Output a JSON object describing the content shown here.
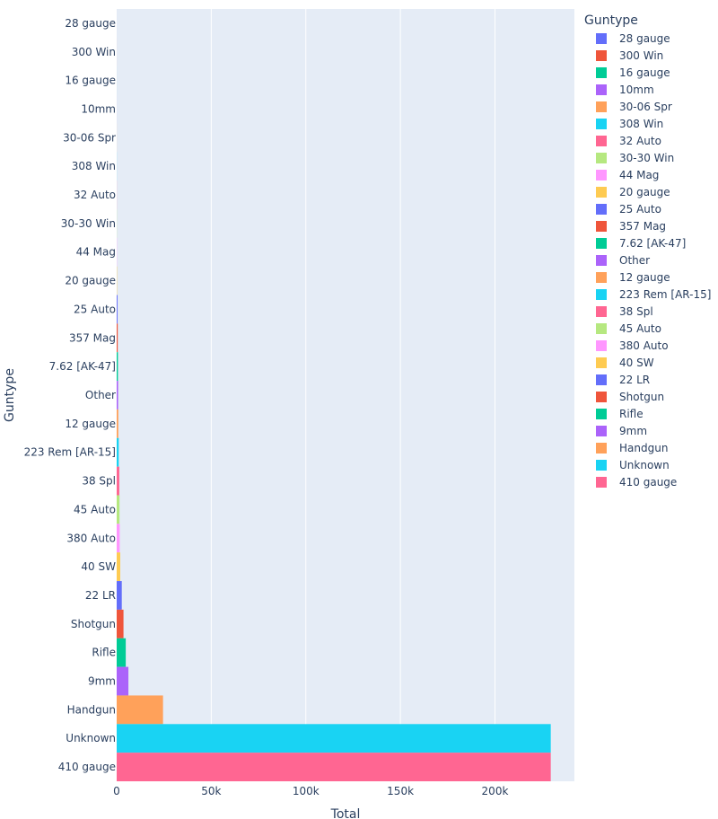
{
  "chart_data": {
    "type": "bar",
    "orientation": "horizontal",
    "xlabel": "Total",
    "ylabel": "Guntype",
    "xlim": [
      0,
      242000
    ],
    "x_ticks": [
      0,
      50000,
      100000,
      150000,
      200000
    ],
    "x_tick_labels": [
      "0",
      "50k",
      "100k",
      "150k",
      "200k"
    ],
    "grid": true,
    "legend_title": "Guntype",
    "legend_position": "right",
    "categories": [
      "28 gauge",
      "300 Win",
      "16 gauge",
      "10mm",
      "30-06 Spr",
      "308 Win",
      "32 Auto",
      "30-30 Win",
      "44 Mag",
      "20 gauge",
      "25 Auto",
      "357 Mag",
      "7.62 [AK-47]",
      "Other",
      "12 gauge",
      "223 Rem [AR-15]",
      "38 Spl",
      "45 Auto",
      "380 Auto",
      "40 SW",
      "22 LR",
      "Shotgun",
      "Rifle",
      "9mm",
      "Handgun",
      "Unknown",
      "410 gauge"
    ],
    "values": [
      5,
      8,
      10,
      15,
      20,
      30,
      40,
      60,
      90,
      150,
      450,
      550,
      650,
      750,
      850,
      1100,
      1400,
      1500,
      1600,
      1900,
      2700,
      3600,
      4800,
      6200,
      24500,
      229500,
      229500
    ],
    "colors": [
      "#636efa",
      "#EF553B",
      "#00cc96",
      "#ab63fa",
      "#FFA15A",
      "#19d3f3",
      "#FF6692",
      "#B6E880",
      "#FF97FF",
      "#FECB52",
      "#636efa",
      "#EF553B",
      "#00cc96",
      "#ab63fa",
      "#FFA15A",
      "#19d3f3",
      "#FF6692",
      "#B6E880",
      "#FF97FF",
      "#FECB52",
      "#636efa",
      "#EF553B",
      "#00cc96",
      "#ab63fa",
      "#FFA15A",
      "#19d3f3",
      "#FF6692"
    ],
    "plot_background": "#E5ECF6",
    "gridline_color": "#ffffff"
  }
}
